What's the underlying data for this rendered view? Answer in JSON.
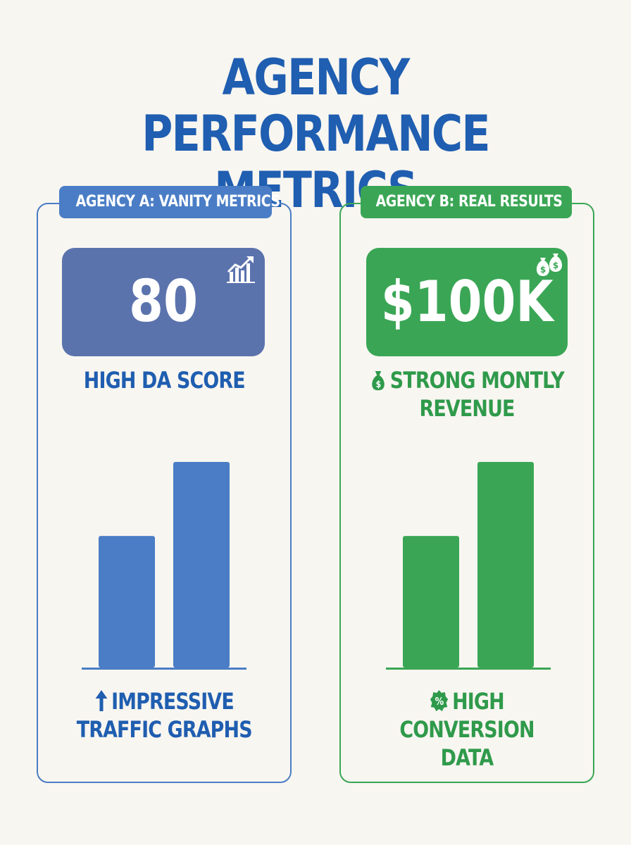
{
  "title_line1": "AGENCY PERFORMANCE",
  "title_line2": "METRICS",
  "colors": {
    "background": "#f8f6f1",
    "title_blue": "#1f5eb0",
    "agency_a_tag": "#4a7dc5",
    "agency_a_metric_box": "#5b73ad",
    "agency_a_bar": "#4a7dc5",
    "agency_a_text": "#1f5eb0",
    "agency_b_tag": "#3aa655",
    "agency_b_metric_box": "#3aa655",
    "agency_b_bar": "#3aa655",
    "agency_b_text": "#2f9a4b"
  },
  "agency_a": {
    "tag": "AGENCY A: VANITY METRICS",
    "metric_value": "80",
    "metric_icon": "growth-chart-icon",
    "metric_caption": "HIGH DA SCORE",
    "bottom_icon": "up-arrow-icon",
    "bottom_caption_line1": "IMPRESSIVE",
    "bottom_caption_line2": "TRAFFIC GRAPHS"
  },
  "agency_b": {
    "tag": "AGENCY B: REAL RESULTS",
    "metric_value": "$100K",
    "metric_icon": "money-bags-icon",
    "caption_icon": "money-bag-icon",
    "metric_caption_line1": "STRONG MONTLY",
    "metric_caption_line2": "REVENUE",
    "bottom_icon": "percent-badge-icon",
    "bottom_caption_line1": "HIGH CONVERSION",
    "bottom_caption_line2": "DATA"
  },
  "chart_data": [
    {
      "type": "bar",
      "categories": [
        "",
        ""
      ],
      "values": [
        0.64,
        1.0
      ],
      "ylim": [
        0,
        1
      ]
    },
    {
      "type": "bar",
      "categories": [
        "",
        ""
      ],
      "values": [
        0.64,
        1.0
      ],
      "ylim": [
        0,
        1
      ]
    }
  ]
}
